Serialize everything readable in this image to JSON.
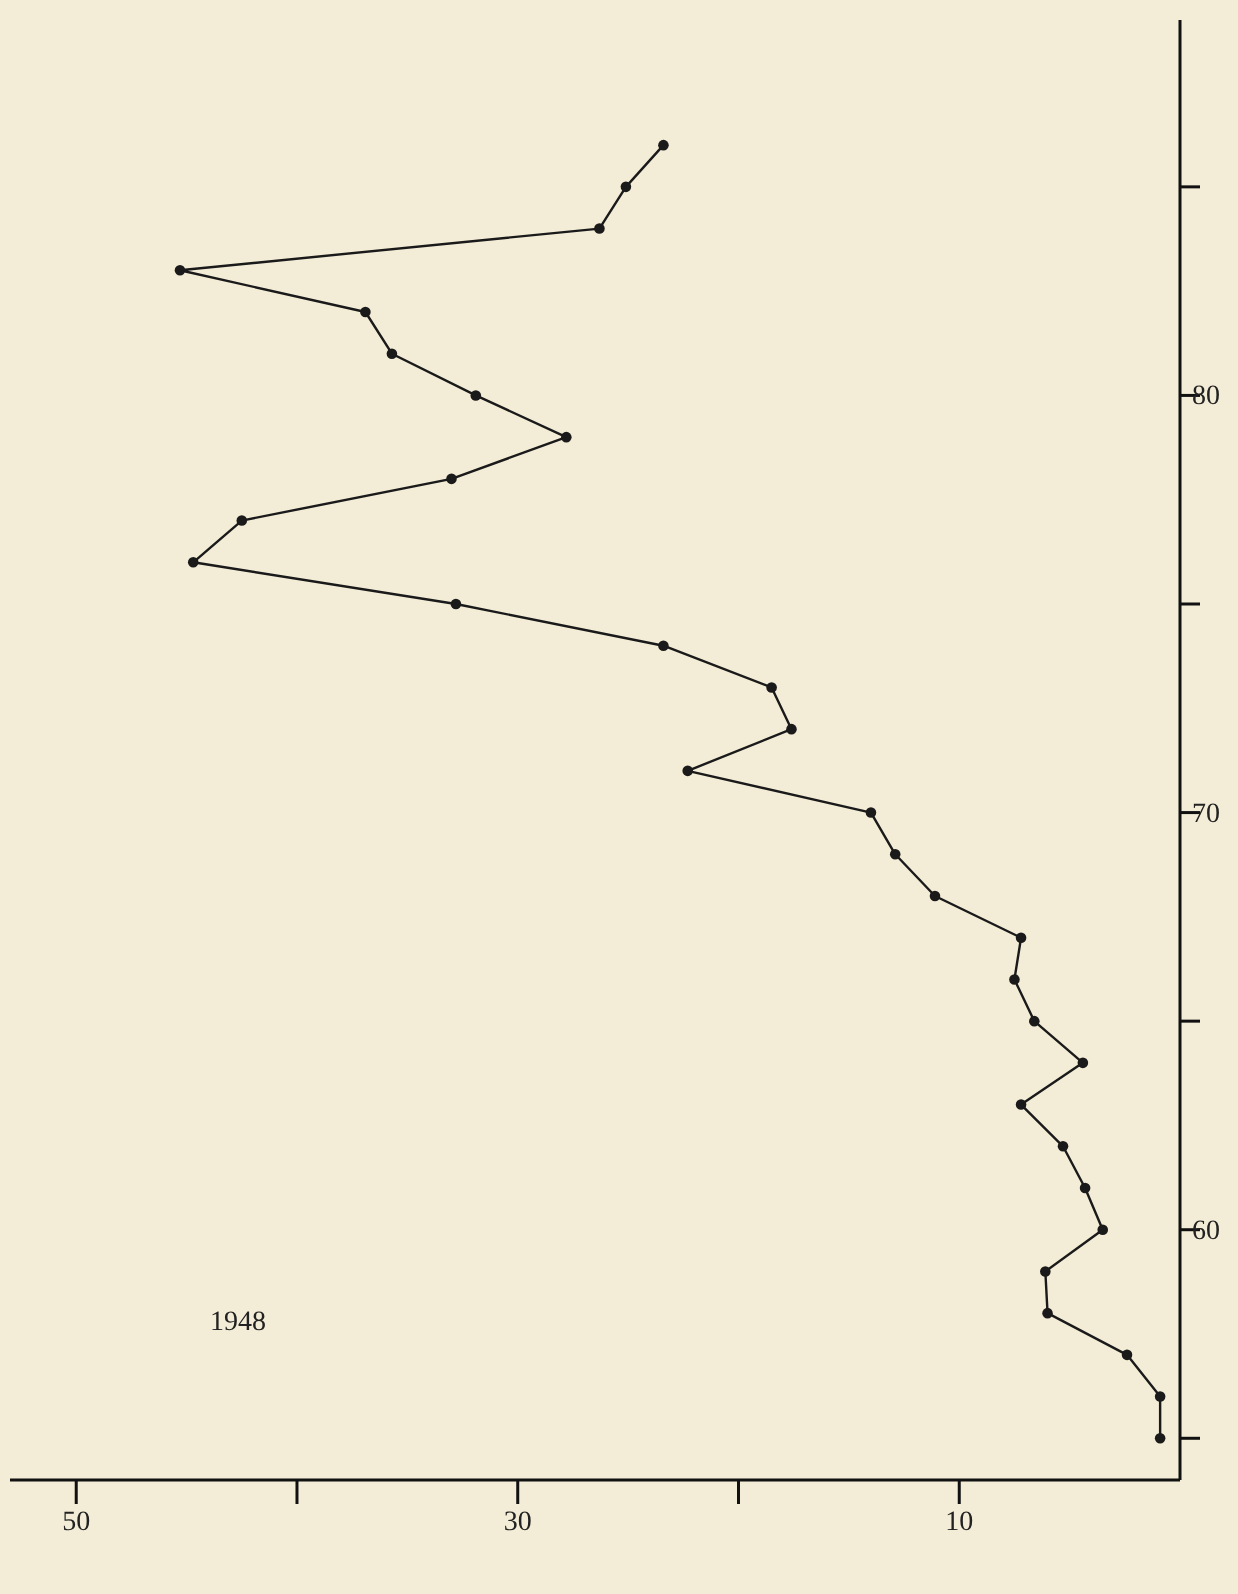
{
  "chart_data": {
    "type": "line",
    "annotations": [
      "1948"
    ],
    "series": [
      {
        "color": "#1a1a1a",
        "x": [
          0.9,
          0.9,
          2.4,
          6.0,
          6.1,
          3.5,
          4.3,
          5.3,
          7.2,
          4.4,
          6.6,
          7.5,
          7.2,
          11.1,
          12.9,
          14.0,
          22.3,
          17.6,
          18.5,
          23.4,
          32.8,
          44.7,
          42.5,
          33.0,
          27.8,
          31.9,
          35.7,
          36.9,
          45.3,
          26.3,
          25.1,
          23.4
        ],
        "values": [
          55,
          56,
          57,
          58,
          59,
          60,
          61,
          62,
          63,
          64,
          65,
          66,
          67,
          68,
          69,
          70,
          71,
          72,
          73,
          74,
          75,
          76,
          77,
          78,
          79,
          80,
          81,
          82,
          83,
          84,
          85,
          86
        ]
      }
    ],
    "xlim": [
      53,
      0
    ],
    "ylim": [
      54,
      89
    ],
    "xticks": [
      10,
      {
        "value": 20,
        "label": null
      },
      30,
      {
        "value": 40,
        "label": null
      },
      50
    ],
    "yticks": [
      {
        "value": 55,
        "label": null
      },
      60,
      {
        "value": 65,
        "label": null
      },
      70,
      {
        "value": 75,
        "label": null
      },
      80,
      {
        "value": 85,
        "label": null
      }
    ],
    "marker": "circle",
    "line_style": "solid"
  }
}
